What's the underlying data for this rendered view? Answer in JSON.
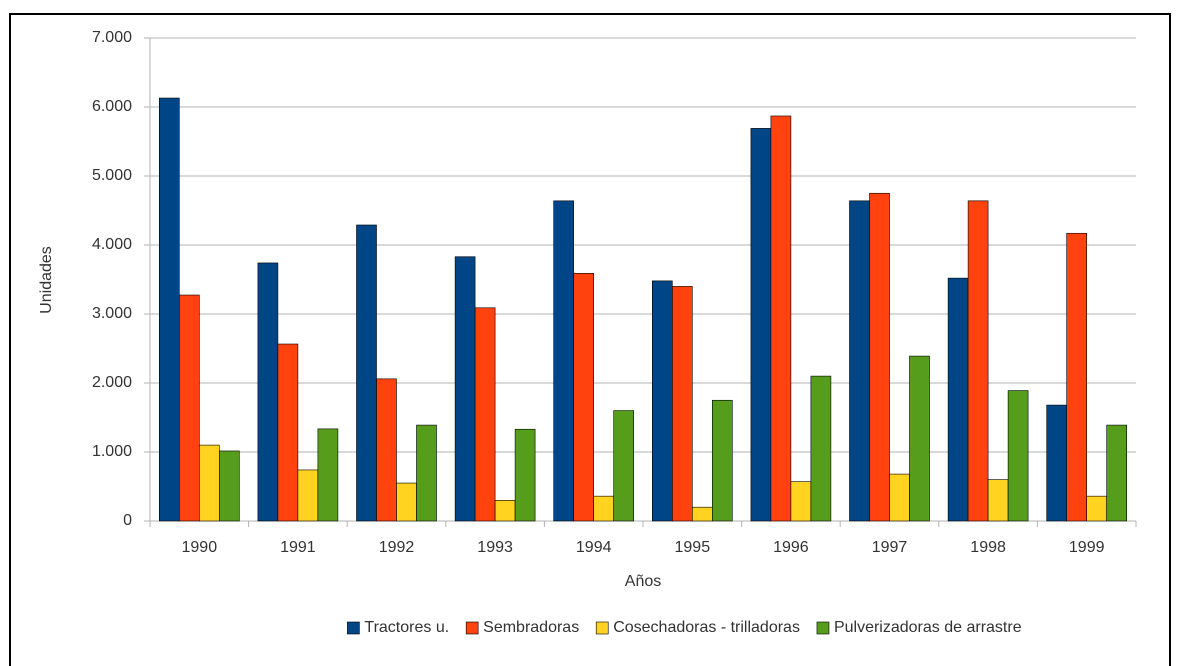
{
  "chart_data": {
    "type": "bar",
    "x_label": "Años",
    "y_label": "Unidades",
    "categories": [
      "1990",
      "1991",
      "1992",
      "1993",
      "1994",
      "1995",
      "1996",
      "1997",
      "1998",
      "1999"
    ],
    "series": [
      {
        "name": "Tractores u.",
        "color": "#004586",
        "values": [
          6130,
          3740,
          4290,
          3830,
          4640,
          3480,
          5690,
          4640,
          3520,
          1680
        ]
      },
      {
        "name": "Sembradoras",
        "color": "#ff420e",
        "values": [
          3275,
          2565,
          2060,
          3090,
          3590,
          3400,
          5870,
          4750,
          4640,
          4170
        ]
      },
      {
        "name": "Cosechadoras - trilladoras",
        "color": "#ffd320",
        "values": [
          1100,
          740,
          550,
          300,
          360,
          200,
          570,
          680,
          600,
          360
        ]
      },
      {
        "name": "Pulverizadoras de arrastre",
        "color": "#579d1c",
        "values": [
          1015,
          1335,
          1390,
          1330,
          1600,
          1750,
          2100,
          2390,
          1890,
          1390
        ]
      }
    ],
    "ylim": [
      0,
      7000
    ],
    "yticks": [
      0,
      {
        "value": 1000,
        "label": "1.000"
      },
      {
        "value": 2000,
        "label": "2.000"
      },
      {
        "value": 3000,
        "label": "3.000"
      },
      {
        "value": 4000,
        "label": "4.000"
      },
      {
        "value": 5000,
        "label": "5.000"
      },
      {
        "value": 6000,
        "label": "6.000"
      },
      {
        "value": 7000,
        "label": "7.000"
      }
    ],
    "grid": true,
    "legend": "bottom"
  }
}
